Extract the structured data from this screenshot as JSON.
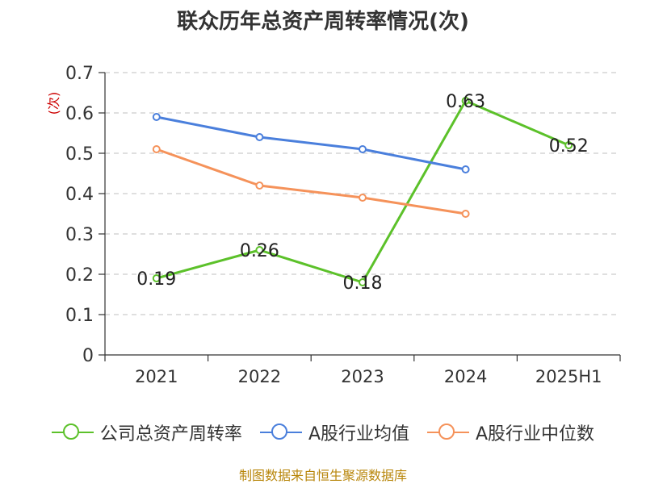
{
  "title": "联众历年总资产周转率情况(次)",
  "source": "制图数据来自恒生聚源数据库",
  "chart_data": {
    "type": "line",
    "title": "联众历年总资产周转率情况(次)",
    "ylabel": "(次)",
    "xlabel": "",
    "categories": [
      "2021",
      "2022",
      "2023",
      "2024",
      "2025H1"
    ],
    "yticks": [
      "0",
      "0.1",
      "0.2",
      "0.3",
      "0.4",
      "0.5",
      "0.6",
      "0.7"
    ],
    "ylim": [
      0,
      0.7
    ],
    "series": [
      {
        "name": "公司总资产周转率",
        "color": "#5cc12a",
        "values": [
          0.19,
          0.26,
          0.18,
          0.63,
          0.52
        ],
        "labels": [
          "0.19",
          "0.26",
          "0.18",
          "0.63",
          "0.52"
        ]
      },
      {
        "name": "A股行业均值",
        "color": "#4a7fdc",
        "values": [
          0.59,
          0.54,
          0.51,
          0.46,
          null
        ]
      },
      {
        "name": "A股行业中位数",
        "color": "#f5925a",
        "values": [
          0.51,
          0.42,
          0.39,
          0.35,
          null
        ]
      }
    ],
    "legend": "bottom"
  }
}
